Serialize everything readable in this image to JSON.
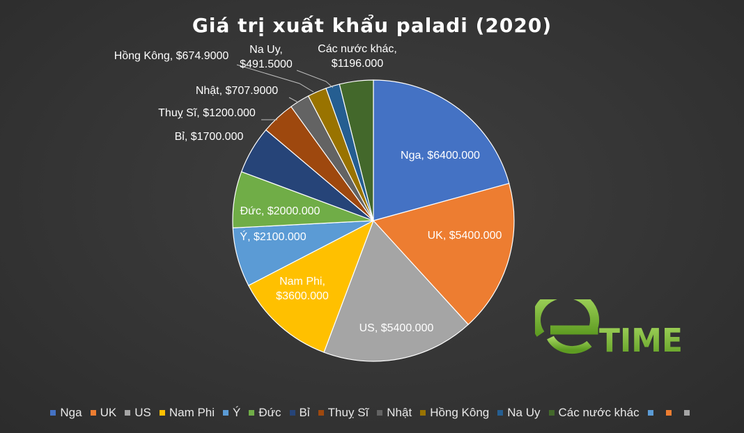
{
  "chart_data": {
    "type": "pie",
    "title": "Giá trị xuất khẩu paladi (2020)",
    "slices": [
      {
        "name": "Nga",
        "value": 6400.0,
        "label_value": "$6400.000",
        "color": "#4472c4",
        "label_color": "#ffffff",
        "label_mode": "inside"
      },
      {
        "name": "UK",
        "value": 5400.0,
        "label_value": "$5400.000",
        "color": "#ed7d31",
        "label_color": "#ffffff",
        "label_mode": "inside"
      },
      {
        "name": "US",
        "value": 5400.0,
        "label_value": "$5400.000",
        "color": "#a5a5a5",
        "label_color": "#ffffff",
        "label_mode": "inside"
      },
      {
        "name": "Nam Phi",
        "value": 3600.0,
        "label_value": "$3600.000",
        "color": "#ffc000",
        "label_color": "#ffffff",
        "label_mode": "inside"
      },
      {
        "name": "Ý",
        "value": 2100.0,
        "label_value": "$2100.000",
        "color": "#5b9bd5",
        "label_color": "#ffffff",
        "label_mode": "inside"
      },
      {
        "name": "Đức",
        "value": 2000.0,
        "label_value": "$2000.000",
        "color": "#70ad47",
        "label_color": "#ffffff",
        "label_mode": "inside"
      },
      {
        "name": "Bỉ",
        "value": 1700.0,
        "label_value": "$1700.000",
        "color": "#264478",
        "label_color": "#ffffff",
        "label_mode": "outside"
      },
      {
        "name": "Thuỵ Sĩ",
        "value": 1200.0,
        "label_value": "$1200.000",
        "color": "#9e480e",
        "label_color": "#ffffff",
        "label_mode": "outside"
      },
      {
        "name": "Nhật",
        "value": 707.9,
        "label_value": "$707.9000",
        "color": "#636363",
        "label_color": "#ffffff",
        "label_mode": "outside"
      },
      {
        "name": "Hồng Kông",
        "value": 674.9,
        "label_value": "$674.9000",
        "color": "#997300",
        "label_color": "#ffffff",
        "label_mode": "outside"
      },
      {
        "name": "Na Uy",
        "value": 491.5,
        "label_value": "$491.5000",
        "color": "#255e91",
        "label_color": "#ffffff",
        "label_mode": "outside"
      },
      {
        "name": "Các nước khác",
        "value": 1196.0,
        "label_value": "$1196.000",
        "color": "#43682b",
        "label_color": "#ffffff",
        "label_mode": "outside"
      }
    ],
    "legend_position": "bottom",
    "legend_extra_swatches": [
      "#5b9bd5",
      "#ed7d31",
      "#a5a5a5"
    ]
  },
  "logo": {
    "letter": "e",
    "text": "TIME",
    "color": "#8dc63f"
  }
}
